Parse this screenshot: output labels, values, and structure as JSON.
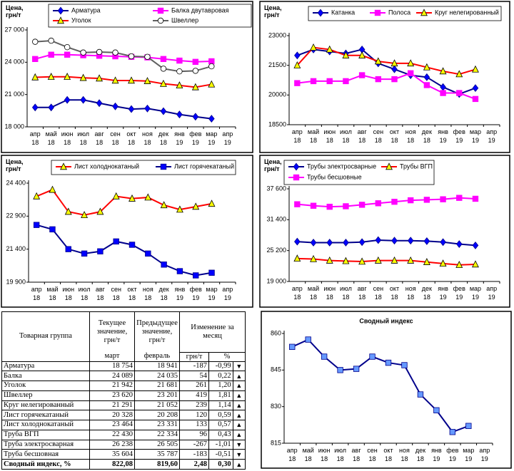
{
  "chart_data": [
    {
      "type": "line",
      "ylabel": "Цена, грн/т",
      "categories": [
        "апр 18",
        "май 18",
        "июн 18",
        "июл 18",
        "авг 18",
        "сен 18",
        "окт 18",
        "ноя 18",
        "дек 18",
        "янв 19",
        "фев 19",
        "мар 19",
        "апр 19"
      ],
      "ylim": [
        18000,
        27000
      ],
      "yticks": [
        {
          "value": 18000,
          "label": "18 000"
        },
        {
          "value": 21000,
          "label": "21 000"
        },
        {
          "value": 24000,
          "label": "24 000"
        },
        {
          "value": 27000,
          "label": "27 000"
        }
      ],
      "series": [
        {
          "name": "Арматура",
          "color": "#00008b",
          "marker": "diamond",
          "marker_color": "#0000ff",
          "values": [
            19800,
            19800,
            20500,
            20500,
            20200,
            19900,
            19650,
            19700,
            19450,
            19150,
            18941,
            18754,
            null
          ]
        },
        {
          "name": "Балка двутавровая",
          "color": "#ff00ff",
          "marker": "square",
          "marker_color": "#ff00ff",
          "values": [
            24300,
            24700,
            24700,
            24650,
            24600,
            24550,
            24500,
            24450,
            24300,
            24150,
            24035,
            24089,
            null
          ]
        },
        {
          "name": "Уголок",
          "color": "#ff0000",
          "marker": "triangle",
          "marker_color": "#ffff00",
          "values": [
            22600,
            22650,
            22650,
            22550,
            22500,
            22300,
            22300,
            22250,
            22000,
            21850,
            21681,
            21942,
            null
          ]
        },
        {
          "name": "Швеллер",
          "color": "#606060",
          "marker": "circle",
          "marker_color": "#ffffff",
          "values": [
            25900,
            26000,
            25400,
            24900,
            24950,
            24900,
            24550,
            24500,
            23400,
            23150,
            23201,
            23620,
            null
          ]
        }
      ],
      "legend": "top"
    },
    {
      "type": "line",
      "ylabel": "Цена, грн/т",
      "categories": [
        "апр 18",
        "май 18",
        "июн 18",
        "июл 18",
        "авг 18",
        "сен 18",
        "окт 18",
        "ноя 18",
        "дек 18",
        "янв 19",
        "фев 19",
        "мар 19",
        "апр 19"
      ],
      "ylim": [
        18500,
        23000
      ],
      "yticks": [
        18500,
        20000,
        21500,
        23000
      ],
      "series": [
        {
          "name": "Катанка",
          "color": "#00008b",
          "marker": "diamond",
          "marker_color": "#0000ff",
          "values": [
            22000,
            22300,
            22200,
            22100,
            22300,
            21600,
            21300,
            21000,
            20900,
            20400,
            20050,
            20350,
            null
          ]
        },
        {
          "name": "Полоса",
          "color": "#ff00ff",
          "marker": "square",
          "marker_color": "#ff00ff",
          "values": [
            20600,
            20700,
            20700,
            20700,
            21000,
            20800,
            20800,
            21100,
            20500,
            20100,
            20100,
            19800,
            null
          ]
        },
        {
          "name": "Круг нелегированный",
          "color": "#ff0000",
          "marker": "triangle",
          "marker_color": "#ffff00",
          "values": [
            21500,
            22400,
            22300,
            22000,
            22000,
            21700,
            21600,
            21600,
            21400,
            21200,
            21052,
            21291,
            null
          ]
        }
      ],
      "legend": "top"
    },
    {
      "type": "line",
      "ylabel": "Цена, грн/т",
      "categories": [
        "апр 18",
        "май 18",
        "июн 18",
        "июл 18",
        "авг 18",
        "сен 18",
        "окт 18",
        "ноя 18",
        "дек 18",
        "янв 19",
        "фев 19",
        "мар 19",
        "апр 19"
      ],
      "ylim": [
        19900,
        24400
      ],
      "yticks": [
        {
          "value": 19900,
          "label": "19 900"
        },
        {
          "value": 21400,
          "label": "21 400"
        },
        {
          "value": 22900,
          "label": "22 900"
        },
        {
          "value": 24400,
          "label": "24 400"
        }
      ],
      "series": [
        {
          "name": "Лист холоднокатаный",
          "color": "#ff0000",
          "marker": "triangle",
          "marker_color": "#ffff00",
          "values": [
            23800,
            24100,
            23100,
            22950,
            23100,
            23800,
            23700,
            23750,
            23400,
            23200,
            23331,
            23464,
            null
          ]
        },
        {
          "name": "Лист горячекатаный",
          "color": "#00008b",
          "marker": "square",
          "marker_color": "#0000ff",
          "values": [
            22500,
            22300,
            21400,
            21200,
            21300,
            21750,
            21600,
            21200,
            20700,
            20400,
            20208,
            20328,
            null
          ]
        }
      ],
      "legend": "top"
    },
    {
      "type": "line",
      "ylabel": "Цена, грн/т",
      "categories": [
        "апр 18",
        "май 18",
        "июн 18",
        "июл 18",
        "авг 18",
        "сен 18",
        "окт 18",
        "ноя 18",
        "дек 18",
        "янв 19",
        "фев 19",
        "мар 19",
        "апр 19"
      ],
      "ylim": [
        19000,
        37600
      ],
      "yticks": [
        {
          "value": 19000,
          "label": "19 000"
        },
        {
          "value": 25200,
          "label": "25 200"
        },
        {
          "value": 31400,
          "label": "31 400"
        },
        {
          "value": 37600,
          "label": "37 600"
        }
      ],
      "series": [
        {
          "name": "Трубы электросварные",
          "color": "#00008b",
          "marker": "diamond",
          "marker_color": "#0000ff",
          "values": [
            27000,
            26800,
            26800,
            26800,
            26900,
            27300,
            27200,
            27200,
            27100,
            26900,
            26505,
            26238,
            null
          ]
        },
        {
          "name": "Трубы ВГП",
          "color": "#ff0000",
          "marker": "triangle",
          "marker_color": "#ffff00",
          "values": [
            23600,
            23500,
            23200,
            23100,
            23000,
            23200,
            23200,
            23200,
            22900,
            22600,
            22334,
            22430,
            null
          ]
        },
        {
          "name": "Трубы бесшовные",
          "color": "#ff00ff",
          "marker": "square",
          "marker_color": "#ff00ff",
          "values": [
            34500,
            34200,
            34000,
            34100,
            34400,
            34700,
            35000,
            35300,
            35400,
            35500,
            35787,
            35604,
            null
          ]
        }
      ],
      "legend": "top"
    },
    {
      "type": "line",
      "title": "Сводный индекс",
      "categories": [
        "апр 18",
        "май 18",
        "июн 18",
        "июл 18",
        "авг 18",
        "сен 18",
        "окт 18",
        "ноя 18",
        "дек 18",
        "янв 19",
        "фев 19",
        "мар 19",
        "апр 19"
      ],
      "ylim": [
        815,
        860
      ],
      "yticks": [
        815,
        830,
        845,
        860
      ],
      "series": [
        {
          "color": "#00008b",
          "marker": "square",
          "marker_color": "#6699ff",
          "values": [
            854.5,
            857.5,
            850.5,
            845,
            845.5,
            850.5,
            848,
            847,
            835,
            828.5,
            819.6,
            822.08,
            null
          ]
        }
      ]
    }
  ],
  "table": {
    "header": {
      "group": "Товарная группа",
      "current": "Текущее значение, грн/т",
      "current_month": "март",
      "previous": "Предыдущее значение, грн/т",
      "previous_month": "февраль",
      "change": "Изменение за месяц",
      "change_abs": "грн/т",
      "change_pct": "%"
    },
    "rows": [
      [
        "Арматура",
        "18 754",
        "18 941",
        "-187",
        "-0,99",
        "▼"
      ],
      [
        "Балка",
        "24 089",
        "24 035",
        "54",
        "0,22",
        "▲"
      ],
      [
        "Уголок",
        "21 942",
        "21 681",
        "261",
        "1,20",
        "▲"
      ],
      [
        "Швеллер",
        "23 620",
        "23 201",
        "419",
        "1,81",
        "▲"
      ],
      [
        "Круг нелегированный",
        "21 291",
        "21 052",
        "239",
        "1,14",
        "▲"
      ],
      [
        "Лист горячекатаный",
        "20 328",
        "20 208",
        "120",
        "0,59",
        "▲"
      ],
      [
        "Лист холоднокатаный",
        "23 464",
        "23 331",
        "133",
        "0,57",
        "▲"
      ],
      [
        "Труба ВГП",
        "22 430",
        "22 334",
        "96",
        "0,43",
        "▲"
      ],
      [
        "Труба электросварная",
        "26 238",
        "26 505",
        "-267",
        "-1,01",
        "▼"
      ],
      [
        "Труба бесшовная",
        "35 604",
        "35 787",
        "-183",
        "-0,51",
        "▼"
      ],
      [
        "Сводный индекс, %",
        "822,08",
        "819,60",
        "2,48",
        "0,30",
        "▲"
      ]
    ]
  }
}
